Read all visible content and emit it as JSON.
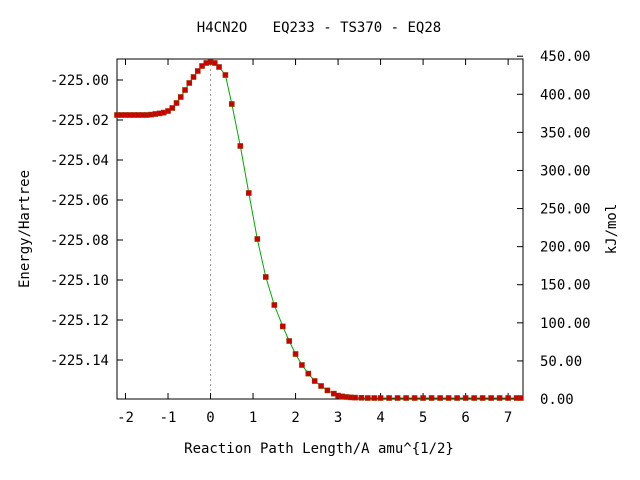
{
  "chart_data": {
    "type": "line",
    "title": "H4CN2O   EQ233 - TS370 - EQ28",
    "xlabel": "Reaction Path Length/A amu^{1/2}",
    "ylabel": "Energy/Hartree",
    "y2label": "kJ/mol",
    "xlim": [
      -2.2,
      7.35
    ],
    "ylim": [
      -225.1595,
      -224.9895
    ],
    "x_ticks": [
      -2,
      -1,
      0,
      1,
      2,
      3,
      4,
      5,
      6,
      7
    ],
    "x_tick_labels": [
      "-2",
      "-1",
      "0",
      "1",
      "2",
      "3",
      "4",
      "5",
      "6",
      "7"
    ],
    "y_ticks": [
      -225.0,
      -225.02,
      -225.04,
      -225.06,
      -225.08,
      -225.1,
      -225.12,
      -225.14
    ],
    "y_tick_labels": [
      "-225.00",
      "-225.02",
      "-225.04",
      "-225.06",
      "-225.08",
      "-225.10",
      "-225.12",
      "-225.14"
    ],
    "y2_tick_labels": [
      "0.00",
      "50.00",
      "100.00",
      "150.00",
      "200.00",
      "250.00",
      "300.00",
      "350.00",
      "400.00",
      "450.00"
    ],
    "y2_tick_values_kjmol": [
      0,
      50,
      100,
      150,
      200,
      250,
      300,
      350,
      400,
      450
    ],
    "y2_reference_hartree": -225.1595,
    "hartree_to_kjmol": 2625.5,
    "ts_x": 0.0,
    "colors": {
      "curve": "#00aa00",
      "points": "#cc0000",
      "ts_line": "#999999"
    },
    "series": [
      {
        "x": [
          -2.2,
          -2.1,
          -2.0,
          -1.9,
          -1.8,
          -1.7,
          -1.6,
          -1.5,
          -1.4,
          -1.3,
          -1.2,
          -1.1,
          -1.0,
          -0.9,
          -0.8,
          -0.7,
          -0.6,
          -0.5,
          -0.4,
          -0.3,
          -0.2,
          -0.1,
          0.0,
          0.1,
          0.2,
          0.35,
          0.5,
          0.7,
          0.9,
          1.1,
          1.3,
          1.5,
          1.7,
          1.85,
          2.0,
          2.15,
          2.3,
          2.45,
          2.6,
          2.75,
          2.9,
          3.0,
          3.1,
          3.2,
          3.3,
          3.4,
          3.55,
          3.7,
          3.85,
          4.0,
          4.2,
          4.4,
          4.6,
          4.8,
          5.0,
          5.2,
          5.4,
          5.6,
          5.8,
          6.0,
          6.2,
          6.4,
          6.6,
          6.8,
          7.0,
          7.2,
          7.3
        ],
        "y": [
          -225.0175,
          -225.0175,
          -225.0175,
          -225.0175,
          -225.0175,
          -225.0175,
          -225.0175,
          -225.0175,
          -225.0173,
          -225.017,
          -225.0167,
          -225.0163,
          -225.0155,
          -225.014,
          -225.0115,
          -225.0085,
          -225.005,
          -225.0015,
          -224.9985,
          -224.9955,
          -224.993,
          -224.9915,
          -224.991,
          -224.9915,
          -224.9935,
          -224.9975,
          -225.012,
          -225.033,
          -225.0565,
          -225.0795,
          -225.0985,
          -225.1125,
          -225.1232,
          -225.1305,
          -225.137,
          -225.1425,
          -225.1468,
          -225.1505,
          -225.153,
          -225.1552,
          -225.1568,
          -225.1578,
          -225.1582,
          -225.1585,
          -225.1587,
          -225.1588,
          -225.1589,
          -225.159,
          -225.159,
          -225.159,
          -225.159,
          -225.159,
          -225.159,
          -225.159,
          -225.159,
          -225.159,
          -225.159,
          -225.159,
          -225.159,
          -225.159,
          -225.159,
          -225.159,
          -225.159,
          -225.159,
          -225.159,
          -225.159,
          -225.159
        ]
      }
    ]
  }
}
